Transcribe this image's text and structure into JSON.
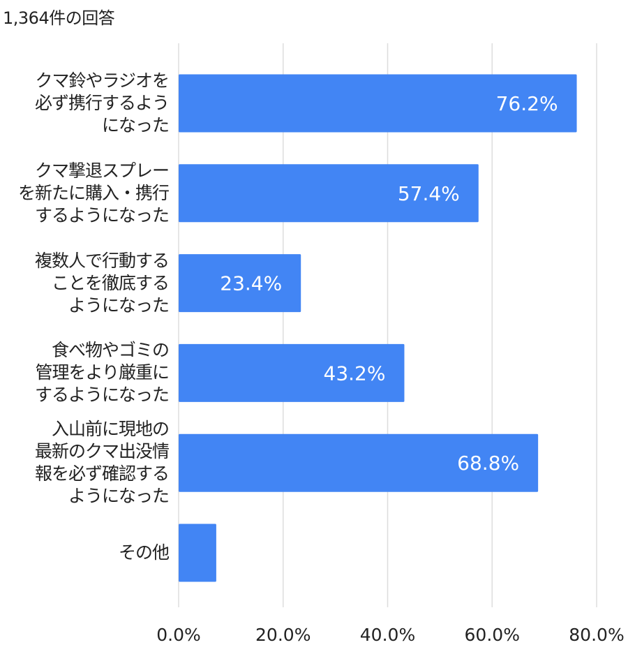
{
  "chart_data": {
    "type": "bar",
    "orientation": "horizontal",
    "subtitle": "1,364件の回答",
    "categories": [
      [
        "クマ鈴やラジオを",
        "必ず携行するよう",
        "になった"
      ],
      [
        "クマ撃退スプレー",
        "を新たに購入・携行",
        "するようになった"
      ],
      [
        "複数人で行動する",
        "ことを徹底する",
        "ようになった"
      ],
      [
        "食べ物やゴミの",
        "管理をより厳重に",
        "するようになった"
      ],
      [
        "入山前に現地の",
        "最新のクマ出没情",
        "報を必ず確認する",
        "ようになった"
      ],
      [
        "その他"
      ]
    ],
    "values": [
      76.2,
      57.4,
      23.4,
      43.2,
      68.8,
      7.2
    ],
    "data_labels": [
      "76.2%",
      "57.4%",
      "23.4%",
      "43.2%",
      "68.8%",
      ""
    ],
    "xlim": [
      0,
      80
    ],
    "x_ticks": [
      "0.0%",
      "20.0%",
      "40.0%",
      "60.0%",
      "80.0%"
    ],
    "x_tick_values": [
      0,
      20,
      40,
      60,
      80
    ],
    "grid": true,
    "bar_color": "#4285f4",
    "grid_color": "#dddddd"
  }
}
